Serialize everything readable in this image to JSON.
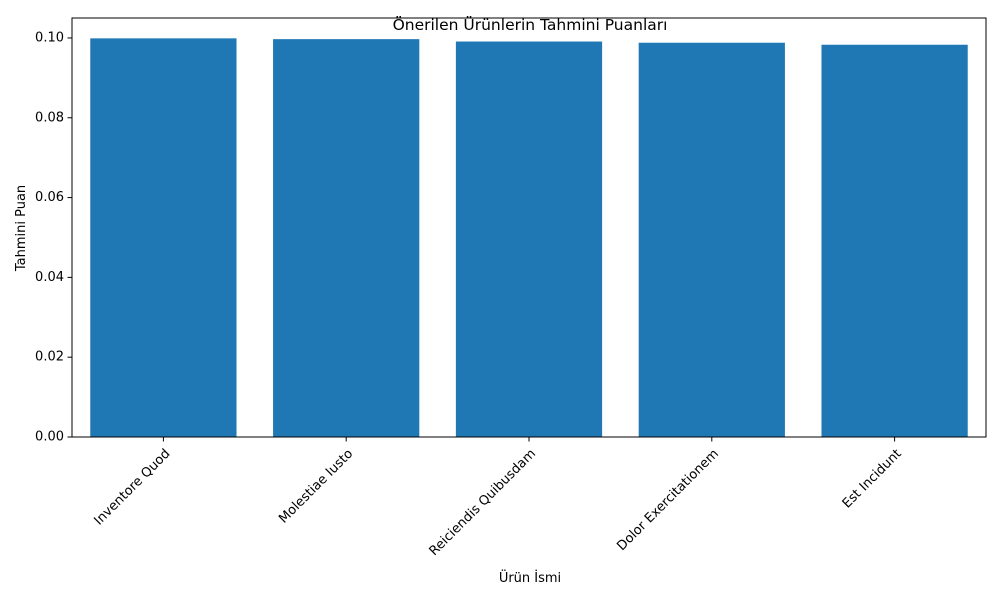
{
  "chart_data": {
    "type": "bar",
    "title": "Önerilen Ürünlerin Tahmini Puanları",
    "xlabel": "Ürün İsmi",
    "ylabel": "Tahmini Puan",
    "categories": [
      "Inventore Quod",
      "Molestiae Iusto",
      "Reiciendis Quibusdam",
      "Dolor Exercitationem",
      "Est Incidunt"
    ],
    "values": [
      0.0999,
      0.0997,
      0.0991,
      0.0988,
      0.0983
    ],
    "ylim": [
      0,
      0.105
    ],
    "yticks": [
      0.0,
      0.02,
      0.04,
      0.06,
      0.08,
      0.1
    ],
    "ytick_labels": [
      "0.00",
      "0.02",
      "0.04",
      "0.06",
      "0.08",
      "0.10"
    ],
    "grid": false,
    "legend": "none",
    "colors": {
      "bar": "#1f77b4",
      "axis": "#000000"
    }
  }
}
